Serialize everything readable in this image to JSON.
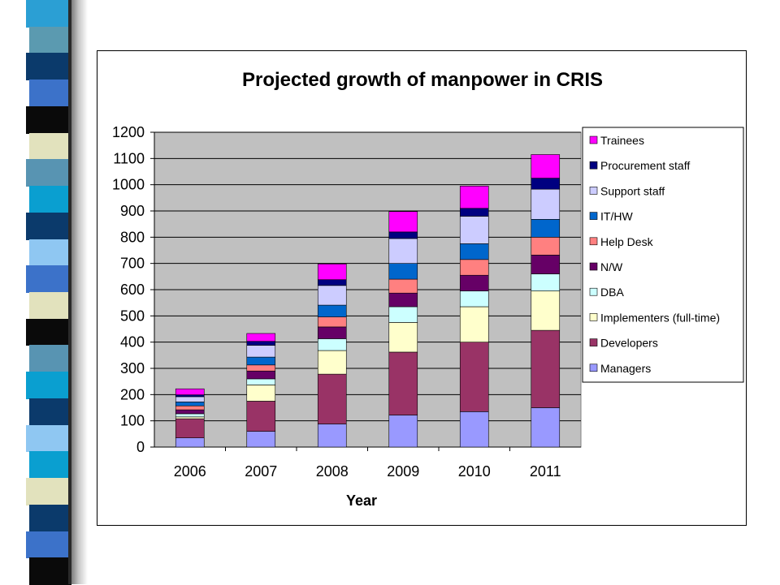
{
  "strip_colors": [
    "#2b9fd4",
    "#5b9ab0",
    "#0b3a6b",
    "#3c72c9",
    "#0a0a0a",
    "#e2e2bd",
    "#5894b2",
    "#0a9fd0",
    "#0b3a6b",
    "#8fc7f2",
    "#3c72c9",
    "#e2e2bd",
    "#0a0a0a",
    "#5894b2",
    "#0a9fd0",
    "#0b3a6b",
    "#8fc7f2",
    "#0a9fd0",
    "#e2e2bd",
    "#0b3a6b",
    "#3c72c9",
    "#0a0a0a"
  ],
  "chart_data": {
    "type": "bar",
    "stacked": true,
    "title": "Projected growth of manpower in CRIS",
    "xlabel": "Year",
    "ylabel": "",
    "ylim": [
      0,
      1200
    ],
    "yticks": [
      0,
      100,
      200,
      300,
      400,
      500,
      600,
      700,
      800,
      900,
      1000,
      1100,
      1200
    ],
    "grid": true,
    "plot_background": "#c0c0c0",
    "legend_position": "right",
    "categories": [
      "2006",
      "2007",
      "2008",
      "2009",
      "2010",
      "2011"
    ],
    "series": [
      {
        "name": "Managers",
        "color": "#9999ff",
        "values": [
          35,
          60,
          88,
          122,
          135,
          150
        ]
      },
      {
        "name": "Developers",
        "color": "#993366",
        "values": [
          73,
          115,
          190,
          240,
          265,
          295
        ]
      },
      {
        "name": "Implementers (full-time)",
        "color": "#ffffcc",
        "values": [
          7,
          62,
          90,
          113,
          135,
          150
        ]
      },
      {
        "name": "DBA",
        "color": "#ccffff",
        "values": [
          12,
          23,
          45,
          60,
          60,
          65
        ]
      },
      {
        "name": "N/W",
        "color": "#660066",
        "values": [
          15,
          30,
          45,
          52,
          60,
          72
        ]
      },
      {
        "name": "Help Desk",
        "color": "#ff8080",
        "values": [
          15,
          23,
          38,
          53,
          60,
          68
        ]
      },
      {
        "name": "IT/HW",
        "color": "#0066cc",
        "values": [
          15,
          30,
          45,
          60,
          60,
          68
        ]
      },
      {
        "name": "Support staff",
        "color": "#ccccff",
        "values": [
          20,
          45,
          75,
          95,
          105,
          115
        ]
      },
      {
        "name": "Procurement staff",
        "color": "#000080",
        "values": [
          7,
          15,
          22,
          25,
          30,
          42
        ]
      },
      {
        "name": "Trainees",
        "color": "#ff00ff",
        "values": [
          23,
          30,
          60,
          78,
          85,
          90
        ]
      }
    ]
  }
}
